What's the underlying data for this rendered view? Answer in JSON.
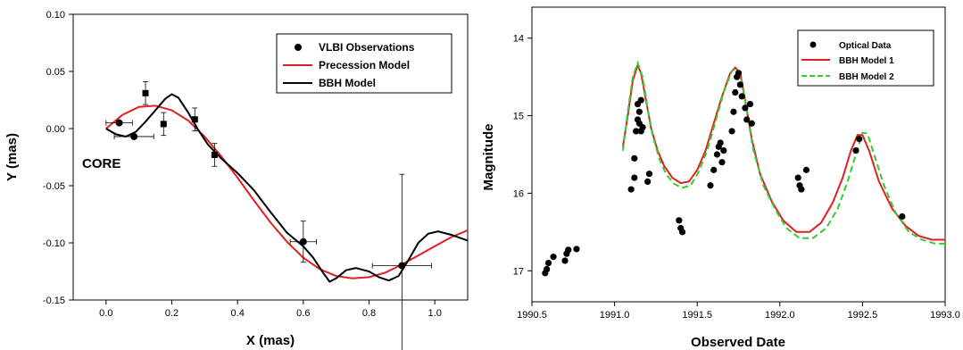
{
  "chart_data": [
    {
      "type": "scatter",
      "title": "",
      "xlabel": "X (mas)",
      "ylabel": "Y (mas)",
      "xlim": [
        -0.1,
        1.1
      ],
      "ylim": [
        -0.15,
        0.1
      ],
      "x_ticks": [
        "0.0",
        "0.2",
        "0.4",
        "0.6",
        "0.8",
        "1.0"
      ],
      "x_tick_values": [
        0.0,
        0.2,
        0.4,
        0.6,
        0.8,
        1.0
      ],
      "y_ticks": [
        "0.10",
        "0.05",
        "0.00",
        "-0.05",
        "-0.10",
        "-0.15"
      ],
      "y_tick_values": [
        0.1,
        0.05,
        0.0,
        -0.05,
        -0.1,
        -0.15
      ],
      "legend_position": "top-right",
      "annotations": [
        {
          "text": "CORE",
          "x": 0.0,
          "y": -0.03
        }
      ],
      "series": [
        {
          "name": "VLBI Observations",
          "kind": "points",
          "color": "#000000",
          "points": [
            {
              "x": 0.04,
              "y": 0.005,
              "xerr": 0.04,
              "yerr": 0.0,
              "marker": "circle"
            },
            {
              "x": 0.085,
              "y": -0.007,
              "xerr": 0.06,
              "yerr": 0.0,
              "marker": "circle"
            },
            {
              "x": 0.12,
              "y": 0.031,
              "xerr": 0.0,
              "yerr": 0.01,
              "marker": "square"
            },
            {
              "x": 0.175,
              "y": 0.004,
              "xerr": 0.0,
              "yerr": 0.01,
              "marker": "square"
            },
            {
              "x": 0.27,
              "y": 0.008,
              "xerr": 0.0,
              "yerr": 0.01,
              "marker": "square"
            },
            {
              "x": 0.33,
              "y": -0.023,
              "xerr": 0.0,
              "yerr": 0.01,
              "marker": "square"
            },
            {
              "x": 0.6,
              "y": -0.099,
              "xerr": 0.04,
              "yerr": 0.018,
              "marker": "circle"
            },
            {
              "x": 0.9,
              "y": -0.12,
              "xerr": 0.09,
              "yerr": 0.08,
              "marker": "circle"
            }
          ]
        },
        {
          "name": "Precession Model",
          "kind": "line",
          "color": "#e02020",
          "x": [
            0.0,
            0.05,
            0.1,
            0.15,
            0.2,
            0.25,
            0.3,
            0.35,
            0.4,
            0.45,
            0.5,
            0.55,
            0.6,
            0.65,
            0.7,
            0.75,
            0.8,
            0.85,
            0.9,
            0.95,
            1.0,
            1.05,
            1.1
          ],
          "y": [
            0.0,
            0.012,
            0.019,
            0.02,
            0.016,
            0.007,
            -0.007,
            -0.024,
            -0.043,
            -0.063,
            -0.082,
            -0.099,
            -0.113,
            -0.123,
            -0.129,
            -0.131,
            -0.13,
            -0.126,
            -0.119,
            -0.111,
            -0.103,
            -0.095,
            -0.089
          ]
        },
        {
          "name": "BBH Model",
          "kind": "line",
          "color": "#000000",
          "x": [
            0.0,
            0.03,
            0.06,
            0.09,
            0.12,
            0.15,
            0.18,
            0.2,
            0.22,
            0.25,
            0.28,
            0.31,
            0.35,
            0.4,
            0.45,
            0.5,
            0.55,
            0.6,
            0.63,
            0.66,
            0.68,
            0.7,
            0.73,
            0.76,
            0.8,
            0.83,
            0.86,
            0.89,
            0.92,
            0.95,
            0.98,
            1.01,
            1.05,
            1.1
          ],
          "y": [
            0.0,
            -0.005,
            -0.007,
            -0.003,
            0.006,
            0.016,
            0.026,
            0.03,
            0.027,
            0.014,
            -0.001,
            -0.014,
            -0.026,
            -0.039,
            -0.054,
            -0.073,
            -0.091,
            -0.103,
            -0.113,
            -0.126,
            -0.134,
            -0.131,
            -0.124,
            -0.122,
            -0.125,
            -0.13,
            -0.133,
            -0.129,
            -0.115,
            -0.1,
            -0.092,
            -0.09,
            -0.093,
            -0.098
          ]
        }
      ]
    },
    {
      "type": "scatter",
      "title": "",
      "xlabel": "Observed Date",
      "ylabel": "Magnitude",
      "xlim": [
        1990.5,
        1993.0
      ],
      "ylim": [
        17.4,
        13.6
      ],
      "y_inverted": true,
      "x_ticks": [
        "1990.5",
        "1991.0",
        "1991.5",
        "1992.0",
        "1992.5",
        "1993.0"
      ],
      "x_tick_values": [
        1990.5,
        1991.0,
        1991.5,
        1992.0,
        1992.5,
        1993.0
      ],
      "y_ticks": [
        "14",
        "15",
        "16",
        "17"
      ],
      "y_tick_values": [
        14,
        15,
        16,
        17
      ],
      "legend_position": "top-right",
      "series": [
        {
          "name": "Optical Data",
          "kind": "points",
          "color": "#000000",
          "x": [
            1990.58,
            1990.59,
            1990.6,
            1990.63,
            1990.7,
            1990.71,
            1990.72,
            1990.77,
            1991.1,
            1991.12,
            1991.12,
            1991.13,
            1991.14,
            1991.14,
            1991.15,
            1991.15,
            1991.16,
            1991.16,
            1991.17,
            1991.2,
            1991.21,
            1991.39,
            1991.4,
            1991.41,
            1991.58,
            1991.6,
            1991.62,
            1991.63,
            1991.64,
            1991.65,
            1991.66,
            1991.71,
            1991.72,
            1991.73,
            1991.74,
            1991.75,
            1991.76,
            1991.77,
            1991.79,
            1991.8,
            1991.82,
            1991.83,
            1992.11,
            1992.12,
            1992.13,
            1992.16,
            1992.46,
            1992.48,
            1992.74
          ],
          "y": [
            17.03,
            16.98,
            16.9,
            16.82,
            16.87,
            16.78,
            16.73,
            16.72,
            15.95,
            15.8,
            15.55,
            15.2,
            15.05,
            14.85,
            14.95,
            15.1,
            14.8,
            15.2,
            15.15,
            15.85,
            15.75,
            16.35,
            16.45,
            16.5,
            15.9,
            15.7,
            15.5,
            15.4,
            15.35,
            15.6,
            15.45,
            15.2,
            14.95,
            14.7,
            14.5,
            14.45,
            14.6,
            14.75,
            14.9,
            15.05,
            14.85,
            15.1,
            15.8,
            15.9,
            15.95,
            15.7,
            15.45,
            15.3,
            16.3
          ]
        },
        {
          "name": "BBH Model 1",
          "kind": "line",
          "color": "#e02020",
          "x": [
            1991.05,
            1991.08,
            1991.11,
            1991.14,
            1991.16,
            1991.19,
            1991.22,
            1991.26,
            1991.3,
            1991.35,
            1991.4,
            1991.45,
            1991.5,
            1991.55,
            1991.6,
            1991.65,
            1991.7,
            1991.73,
            1991.76,
            1991.79,
            1991.83,
            1991.88,
            1991.95,
            1992.02,
            1992.1,
            1992.18,
            1992.25,
            1992.32,
            1992.38,
            1992.43,
            1992.47,
            1992.5,
            1992.54,
            1992.6,
            1992.68,
            1992.76,
            1992.84,
            1992.92,
            1993.0
          ],
          "y": [
            15.4,
            15.0,
            14.55,
            14.35,
            14.45,
            14.8,
            15.15,
            15.45,
            15.65,
            15.8,
            15.87,
            15.85,
            15.7,
            15.45,
            15.1,
            14.75,
            14.45,
            14.38,
            14.45,
            14.8,
            15.3,
            15.75,
            16.1,
            16.35,
            16.5,
            16.5,
            16.38,
            16.12,
            15.8,
            15.45,
            15.25,
            15.25,
            15.45,
            15.85,
            16.2,
            16.42,
            16.55,
            16.6,
            16.6
          ]
        },
        {
          "name": "BBH Model 2",
          "kind": "line",
          "color": "#33cc33",
          "x": [
            1991.05,
            1991.08,
            1991.11,
            1991.14,
            1991.17,
            1991.2,
            1991.23,
            1991.27,
            1991.31,
            1991.36,
            1991.41,
            1991.46,
            1991.51,
            1991.56,
            1991.61,
            1991.66,
            1991.71,
            1991.74,
            1991.77,
            1991.8,
            1991.84,
            1991.9,
            1991.97,
            1992.04,
            1992.12,
            1992.2,
            1992.28,
            1992.35,
            1992.41,
            1992.46,
            1992.5,
            1992.53,
            1992.57,
            1992.63,
            1992.7,
            1992.78,
            1992.86,
            1992.94,
            1993.0
          ],
          "y": [
            15.45,
            14.95,
            14.5,
            14.32,
            14.5,
            14.9,
            15.25,
            15.55,
            15.75,
            15.88,
            15.93,
            15.9,
            15.72,
            15.45,
            15.08,
            14.7,
            14.42,
            14.4,
            14.55,
            14.95,
            15.45,
            15.9,
            16.2,
            16.45,
            16.58,
            16.58,
            16.45,
            16.2,
            15.85,
            15.5,
            15.22,
            15.23,
            15.5,
            15.9,
            16.25,
            16.5,
            16.6,
            16.65,
            16.65
          ]
        }
      ]
    }
  ]
}
